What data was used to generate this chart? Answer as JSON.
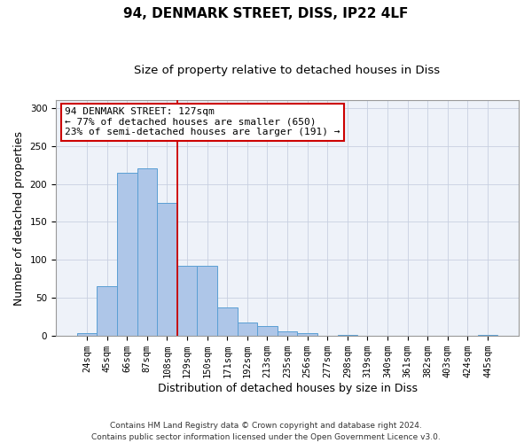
{
  "title1": "94, DENMARK STREET, DISS, IP22 4LF",
  "title2": "Size of property relative to detached houses in Diss",
  "xlabel": "Distribution of detached houses by size in Diss",
  "ylabel": "Number of detached properties",
  "categories": [
    "24sqm",
    "45sqm",
    "66sqm",
    "87sqm",
    "108sqm",
    "129sqm",
    "150sqm",
    "171sqm",
    "192sqm",
    "213sqm",
    "235sqm",
    "256sqm",
    "277sqm",
    "298sqm",
    "319sqm",
    "340sqm",
    "361sqm",
    "382sqm",
    "403sqm",
    "424sqm",
    "445sqm"
  ],
  "values": [
    4,
    65,
    214,
    220,
    175,
    92,
    92,
    38,
    18,
    13,
    6,
    4,
    0,
    2,
    0,
    0,
    0,
    0,
    0,
    0,
    2
  ],
  "bar_color": "#aec6e8",
  "bar_edge_color": "#5a9fd4",
  "vline_x_index": 5,
  "vline_color": "#cc0000",
  "annotation_text": "94 DENMARK STREET: 127sqm\n← 77% of detached houses are smaller (650)\n23% of semi-detached houses are larger (191) →",
  "annotation_box_color": "#ffffff",
  "annotation_box_edge_color": "#cc0000",
  "ylim": [
    0,
    310
  ],
  "yticks": [
    0,
    50,
    100,
    150,
    200,
    250,
    300
  ],
  "footer": "Contains HM Land Registry data © Crown copyright and database right 2024.\nContains public sector information licensed under the Open Government Licence v3.0.",
  "title1_fontsize": 11,
  "title2_fontsize": 9.5,
  "tick_fontsize": 7.5,
  "ylabel_fontsize": 9,
  "xlabel_fontsize": 9,
  "footer_fontsize": 6.5,
  "annotation_fontsize": 8,
  "background_color": "#eef2f9"
}
